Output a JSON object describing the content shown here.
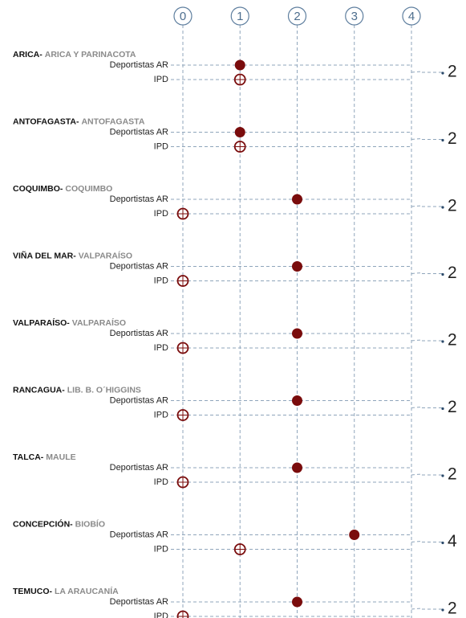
{
  "chart_data": {
    "type": "dot",
    "categories": [
      "ARICA-",
      "ANTOFAGASTA-",
      "COQUIMBO-",
      "VIÑA DEL MAR-",
      "VALPARAÍSO-",
      "RANCAGUA-",
      "TALCA-",
      "CONCEPCIÓN-",
      "TEMUCO-"
    ],
    "regions": [
      "ARICA Y PARINACOTA",
      "ANTOFAGASTA",
      "COQUIMBO",
      "VALPARAÍSO",
      "VALPARAÍSO",
      "LIB. B. O´HIGGINS",
      "MAULE",
      "BIOBÍO",
      "LA ARAUCANÍA"
    ],
    "series": [
      {
        "name": "Deportistas AR",
        "color": "#7a0c0c",
        "filled": true,
        "values": [
          1,
          1,
          2,
          2,
          2,
          2,
          2,
          3,
          2
        ]
      },
      {
        "name": "IPD",
        "color": "#7a0c0c",
        "filled": false,
        "values": [
          1,
          1,
          0,
          0,
          0,
          0,
          0,
          1,
          0
        ]
      }
    ],
    "totals": [
      2,
      2,
      2,
      2,
      2,
      2,
      2,
      4,
      2
    ],
    "xlim": [
      0,
      4
    ],
    "xticks": [
      0,
      1,
      2,
      3,
      4
    ]
  }
}
